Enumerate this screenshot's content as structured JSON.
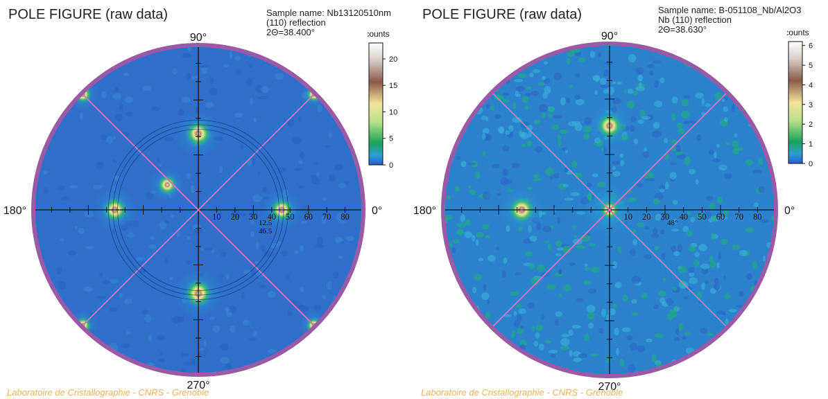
{
  "chart_data": [
    {
      "type": "heatmap",
      "title": "POLE FIGURE (raw data)",
      "sample_lines": [
        "Sample name: Nb13120510nm",
        "(110) reflection",
        "2Θ=38.400°"
      ],
      "azimuth_labels": [
        "90°",
        "180°",
        "270°",
        "0°"
      ],
      "radial_ticks": [
        "10",
        "20",
        "30",
        "40",
        "50",
        "60",
        "70",
        "80"
      ],
      "ring_labels": [
        "12.5",
        "46.5"
      ],
      "colorbar": {
        "title": "counts",
        "ticks": [
          "20",
          "15",
          "10",
          "5",
          "0"
        ],
        "max": 23
      },
      "poles": [
        {
          "azimuth": 90,
          "tilt": 42,
          "intensity": 18
        },
        {
          "azimuth": 0,
          "tilt": 46,
          "intensity": 14
        },
        {
          "azimuth": 180,
          "tilt": 46,
          "intensity": 16
        },
        {
          "azimuth": 270,
          "tilt": 46,
          "intensity": 20
        },
        {
          "azimuth": 135,
          "tilt": 90,
          "intensity": 6
        },
        {
          "azimuth": 45,
          "tilt": 90,
          "intensity": 3
        },
        {
          "azimuth": 225,
          "tilt": 90,
          "intensity": 5
        },
        {
          "azimuth": 315,
          "tilt": 90,
          "intensity": 3
        },
        {
          "azimuth": 141,
          "tilt": 22,
          "intensity": 9
        }
      ]
    },
    {
      "type": "heatmap",
      "title": "POLE FIGURE (raw data)",
      "sample_lines": [
        "Sample name: B-051108_Nb/Al2O3",
        "Nb (110) reflection",
        "2Θ=38.630°"
      ],
      "azimuth_labels": [
        "90°",
        "180°",
        "270°",
        "0°"
      ],
      "radial_ticks": [
        "10",
        "20",
        "30",
        "40",
        "50",
        "60",
        "70",
        "80"
      ],
      "ring_labels": [
        "48°"
      ],
      "colorbar": {
        "title": "counts",
        "ticks": [
          "6",
          "5",
          "4",
          "3",
          "2",
          "1",
          "0"
        ],
        "max": 6.2
      },
      "poles": [
        {
          "azimuth": 90,
          "tilt": 46,
          "intensity": 4.5
        },
        {
          "azimuth": 180,
          "tilt": 48,
          "intensity": 5
        },
        {
          "azimuth": 0,
          "tilt": 0,
          "intensity": 2.4
        }
      ]
    }
  ],
  "footer": "Laboratoire de Cristallographie - CNRS - Grenoble",
  "colors": {
    "rim": "#9b5aa6",
    "diagonal": "#c47cc0",
    "background_field": "#2e74c8",
    "footer": "#f2b15a"
  }
}
